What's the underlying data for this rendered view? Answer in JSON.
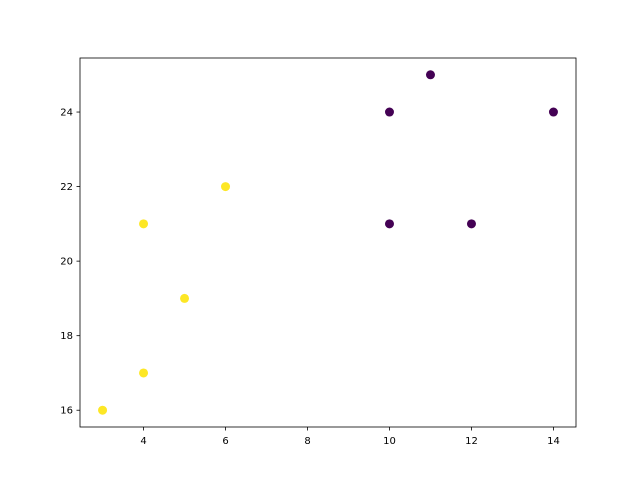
{
  "chart_data": {
    "type": "scatter",
    "title": "",
    "xlabel": "",
    "ylabel": "",
    "xlim": [
      2.45,
      14.55
    ],
    "ylim": [
      15.55,
      25.45
    ],
    "grid": false,
    "x_ticks": [
      4,
      6,
      8,
      10,
      12,
      14
    ],
    "y_ticks": [
      16,
      18,
      20,
      22,
      24
    ],
    "x_tick_labels": [
      "4",
      "6",
      "8",
      "10",
      "12",
      "14"
    ],
    "y_tick_labels": [
      "16",
      "18",
      "20",
      "22",
      "24"
    ],
    "series": [
      {
        "color": "#fde725",
        "points": [
          [
            3,
            16
          ],
          [
            4,
            17
          ],
          [
            4,
            21
          ],
          [
            5,
            19
          ],
          [
            6,
            22
          ]
        ]
      },
      {
        "color": "#440154",
        "points": [
          [
            10,
            21
          ],
          [
            10,
            24
          ],
          [
            11,
            25
          ],
          [
            12,
            21
          ],
          [
            14,
            24
          ]
        ]
      }
    ]
  }
}
